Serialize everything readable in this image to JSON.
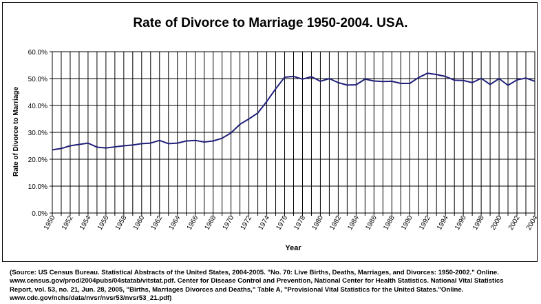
{
  "chart_data": {
    "type": "line",
    "title": "Rate of Divorce to Marriage 1950-2004. USA.",
    "xlabel": "Year",
    "ylabel": "Rate of Divorce to Marriage",
    "ylim": [
      0,
      60
    ],
    "y_ticks": [
      "0.0%",
      "10.0%",
      "20.0%",
      "30.0%",
      "40.0%",
      "50.0%",
      "60.0%"
    ],
    "x_tick_labels": [
      "1950",
      "1952",
      "1954",
      "1956",
      "1958",
      "1960",
      "1962",
      "1964",
      "1966",
      "1968",
      "1970",
      "1972",
      "1974",
      "1976",
      "1978",
      "1980",
      "1982",
      "1984",
      "1986",
      "1988",
      "1990",
      "1992",
      "1994",
      "1996",
      "1998",
      "2000",
      "2002",
      "2004"
    ],
    "grid": {
      "vertical": true,
      "horizontal": true
    },
    "line_color": "#1f1f7a",
    "series": [
      {
        "x": [
          1950,
          1951,
          1952,
          1953,
          1954,
          1955,
          1956,
          1957,
          1958,
          1959,
          1960,
          1961,
          1962,
          1963,
          1964,
          1965,
          1966,
          1967,
          1968,
          1969,
          1970,
          1971,
          1972,
          1973,
          1974,
          1975,
          1976,
          1977,
          1978,
          1979,
          1980,
          1981,
          1982,
          1983,
          1984,
          1985,
          1986,
          1987,
          1988,
          1989,
          1990,
          1991,
          1992,
          1993,
          1994,
          1995,
          1996,
          1997,
          1998,
          1999,
          2000,
          2001,
          2002,
          2003,
          2004
        ],
        "values": [
          23.5,
          24.0,
          25.0,
          25.5,
          26.0,
          24.5,
          24.2,
          24.6,
          25.0,
          25.3,
          25.8,
          26.0,
          27.0,
          25.8,
          26.0,
          26.8,
          27.0,
          26.4,
          26.8,
          27.8,
          29.8,
          33.0,
          35.0,
          37.2,
          41.5,
          46.2,
          50.5,
          50.8,
          49.8,
          50.7,
          49.0,
          50.0,
          48.5,
          47.6,
          47.7,
          49.8,
          49.1,
          48.9,
          49.0,
          48.2,
          48.2,
          50.4,
          52.0,
          51.5,
          50.8,
          49.4,
          49.3,
          48.5,
          50.1,
          47.8,
          50.0,
          47.5,
          49.5,
          50.2,
          49.0
        ]
      }
    ]
  },
  "source": {
    "lines": [
      "(Source: US Census Bureau. Statistical Abstracts of the United States, 2004-2005. \"No. 70: Live Births, Deaths, Marriages, and Divorces: 1950-2002.\" Online.",
      "www.census.gov/prod/2004pubs/04statab/vitstat.pdf. Center for Disease Control and Prevention, National Center for Health Statistics. National Vital Statistics",
      " Report, vol. 53, no. 21, Jun. 28, 2005, \"Births, Marriages Divorces and Deaths,\" Table A, \"Provisional Vital Statistics for the United States.\"Online.",
      "www.cdc.gov/nchs/data/nvsr/nvsr53/nvsr53_21.pdf)"
    ]
  }
}
